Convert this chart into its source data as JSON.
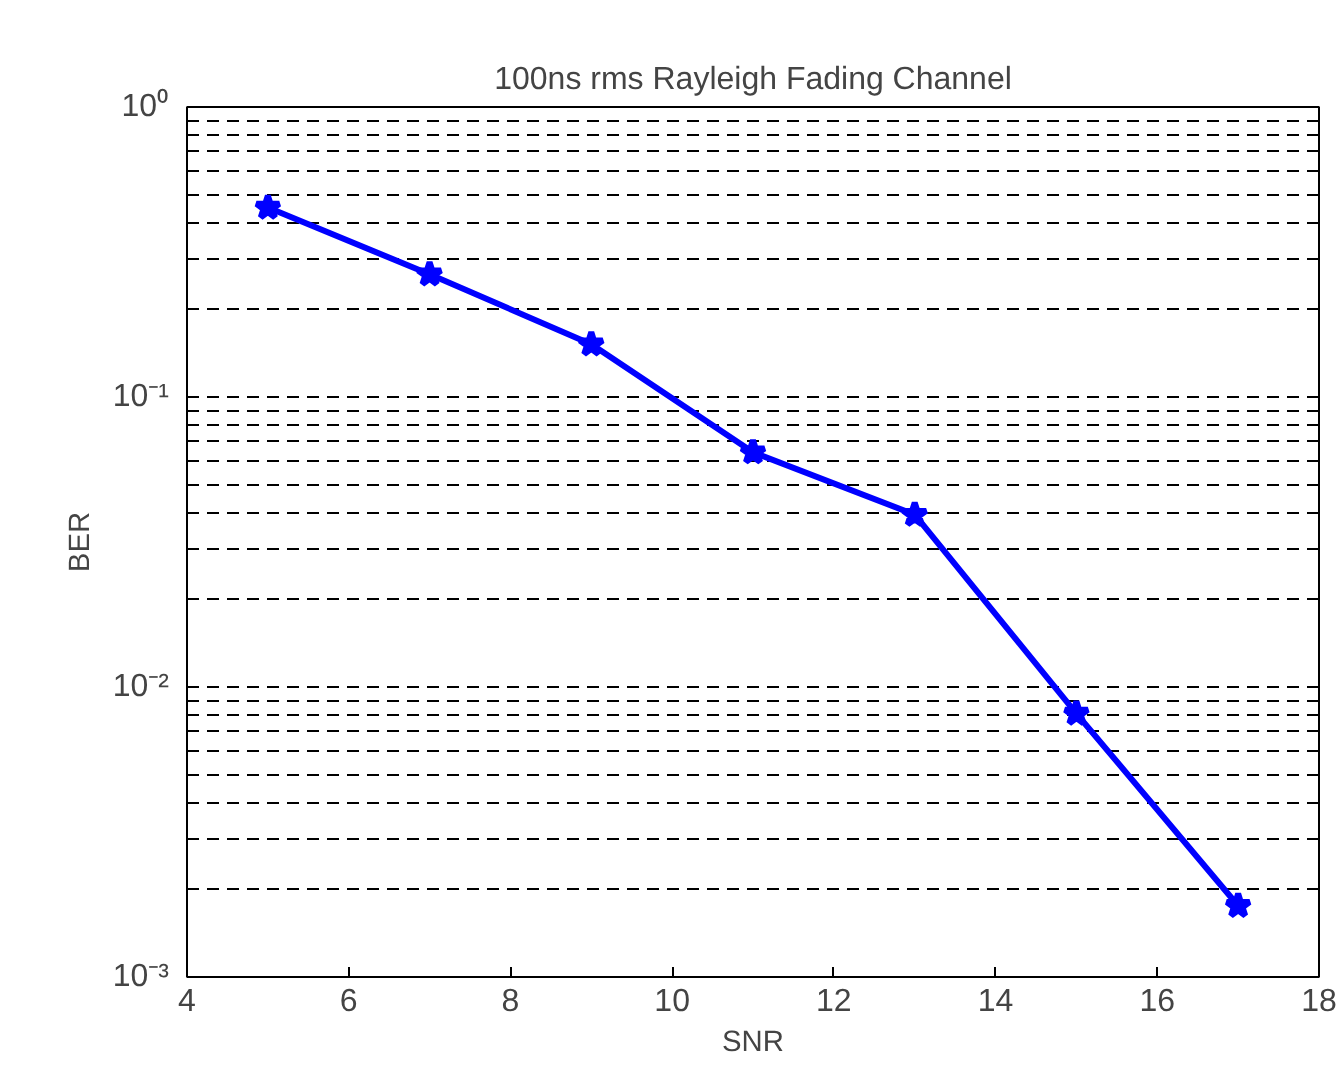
{
  "chart_data": {
    "type": "line",
    "title": "100ns rms Rayleigh Fading Channel",
    "xlabel": "SNR",
    "ylabel": "BER",
    "x": [
      5,
      7,
      9,
      11,
      13,
      15,
      17
    ],
    "series": [
      {
        "color": "#0000ff",
        "values": [
          0.45,
          0.265,
          0.152,
          0.0645,
          0.0393,
          0.0081,
          0.00176
        ]
      }
    ],
    "xlim": [
      4,
      18
    ],
    "xticks": [
      4,
      6,
      8,
      10,
      12,
      14,
      16,
      18
    ],
    "ylim": [
      0.001,
      1
    ],
    "yticks": [
      {
        "value": 0.001,
        "label": "10⁻³"
      },
      {
        "value": 0.01,
        "label": "10⁻²"
      },
      {
        "value": 0.1,
        "label": "10⁻¹"
      },
      {
        "value": 1,
        "label": "10⁰"
      }
    ],
    "log": "y",
    "grid": "y",
    "marker": "star",
    "line_style": "solid"
  }
}
